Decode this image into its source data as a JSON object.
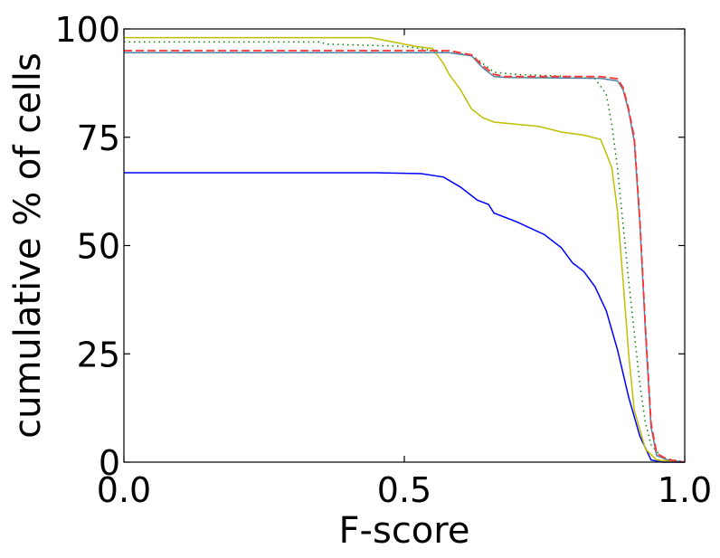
{
  "chart_data": {
    "type": "line",
    "title": "",
    "xlabel": "F-score",
    "ylabel": "cumulative % of cells",
    "xlim": [
      0.0,
      1.0
    ],
    "ylim": [
      0,
      100
    ],
    "x_ticks": [
      0.0,
      0.5,
      1.0
    ],
    "x_tick_labels": [
      "0.0",
      "0.5",
      "1.0"
    ],
    "y_ticks": [
      0,
      25,
      50,
      75,
      100
    ],
    "y_tick_labels": [
      "0",
      "25",
      "50",
      "75",
      "100"
    ],
    "grid": false,
    "legend": "none",
    "series": [
      {
        "color": "#0000ff",
        "style": "solid",
        "width": 1.5,
        "points": [
          [
            0.0,
            66.8
          ],
          [
            0.45,
            66.8
          ],
          [
            0.53,
            66.6
          ],
          [
            0.57,
            65.8
          ],
          [
            0.6,
            63.5
          ],
          [
            0.63,
            60.5
          ],
          [
            0.65,
            59.5
          ],
          [
            0.66,
            57.5
          ],
          [
            0.7,
            55.5
          ],
          [
            0.75,
            52.5
          ],
          [
            0.78,
            49.5
          ],
          [
            0.8,
            46
          ],
          [
            0.82,
            44
          ],
          [
            0.84,
            40.5
          ],
          [
            0.86,
            35
          ],
          [
            0.88,
            26
          ],
          [
            0.9,
            15
          ],
          [
            0.92,
            6
          ],
          [
            0.94,
            0.5
          ],
          [
            0.96,
            0
          ],
          [
            1.0,
            0
          ]
        ]
      },
      {
        "color": "#bfbf00",
        "style": "solid",
        "width": 1.5,
        "points": [
          [
            0.0,
            98
          ],
          [
            0.44,
            98
          ],
          [
            0.48,
            97
          ],
          [
            0.52,
            96
          ],
          [
            0.55,
            95.5
          ],
          [
            0.57,
            92
          ],
          [
            0.58,
            89.5
          ],
          [
            0.6,
            86
          ],
          [
            0.62,
            81.5
          ],
          [
            0.64,
            79.5
          ],
          [
            0.66,
            78.5
          ],
          [
            0.7,
            78
          ],
          [
            0.74,
            77.5
          ],
          [
            0.78,
            76.2
          ],
          [
            0.82,
            75.5
          ],
          [
            0.85,
            74.5
          ],
          [
            0.87,
            68
          ],
          [
            0.88,
            58
          ],
          [
            0.89,
            42
          ],
          [
            0.9,
            25
          ],
          [
            0.91,
            12
          ],
          [
            0.93,
            3
          ],
          [
            0.95,
            0.5
          ],
          [
            1.0,
            0
          ]
        ]
      },
      {
        "color": "#008000",
        "style": "dotted",
        "width": 1.5,
        "points": [
          [
            0.0,
            97
          ],
          [
            0.35,
            97
          ],
          [
            0.36,
            96.5
          ],
          [
            0.5,
            96
          ],
          [
            0.58,
            94.5
          ],
          [
            0.62,
            94
          ],
          [
            0.66,
            90
          ],
          [
            0.7,
            89.5
          ],
          [
            0.8,
            89
          ],
          [
            0.84,
            88.5
          ],
          [
            0.86,
            85
          ],
          [
            0.87,
            78
          ],
          [
            0.88,
            68
          ],
          [
            0.89,
            55
          ],
          [
            0.9,
            42
          ],
          [
            0.91,
            30
          ],
          [
            0.92,
            18
          ],
          [
            0.93,
            9
          ],
          [
            0.94,
            4
          ],
          [
            0.96,
            1
          ],
          [
            1.0,
            0
          ]
        ]
      },
      {
        "color": "#4f83a8",
        "style": "solid",
        "width": 1.5,
        "points": [
          [
            0.0,
            94.5
          ],
          [
            0.58,
            94.5
          ],
          [
            0.62,
            93.8
          ],
          [
            0.64,
            91
          ],
          [
            0.66,
            89
          ],
          [
            0.68,
            88.8
          ],
          [
            0.85,
            88.6
          ],
          [
            0.88,
            88
          ],
          [
            0.89,
            86
          ],
          [
            0.9,
            81
          ],
          [
            0.91,
            74
          ],
          [
            0.92,
            55
          ],
          [
            0.93,
            30
          ],
          [
            0.94,
            8
          ],
          [
            0.95,
            1.5
          ],
          [
            0.97,
            0.5
          ],
          [
            1.0,
            0
          ]
        ]
      },
      {
        "color": "#ff3333",
        "style": "dashed",
        "width": 1.8,
        "points": [
          [
            0.0,
            95
          ],
          [
            0.58,
            95
          ],
          [
            0.62,
            94
          ],
          [
            0.64,
            91.5
          ],
          [
            0.66,
            89.5
          ],
          [
            0.68,
            89
          ],
          [
            0.85,
            89
          ],
          [
            0.88,
            88.5
          ],
          [
            0.89,
            86.5
          ],
          [
            0.9,
            81.5
          ],
          [
            0.91,
            75
          ],
          [
            0.92,
            56
          ],
          [
            0.93,
            31
          ],
          [
            0.94,
            9
          ],
          [
            0.95,
            2
          ],
          [
            0.97,
            0.6
          ],
          [
            1.0,
            0
          ]
        ]
      }
    ]
  }
}
